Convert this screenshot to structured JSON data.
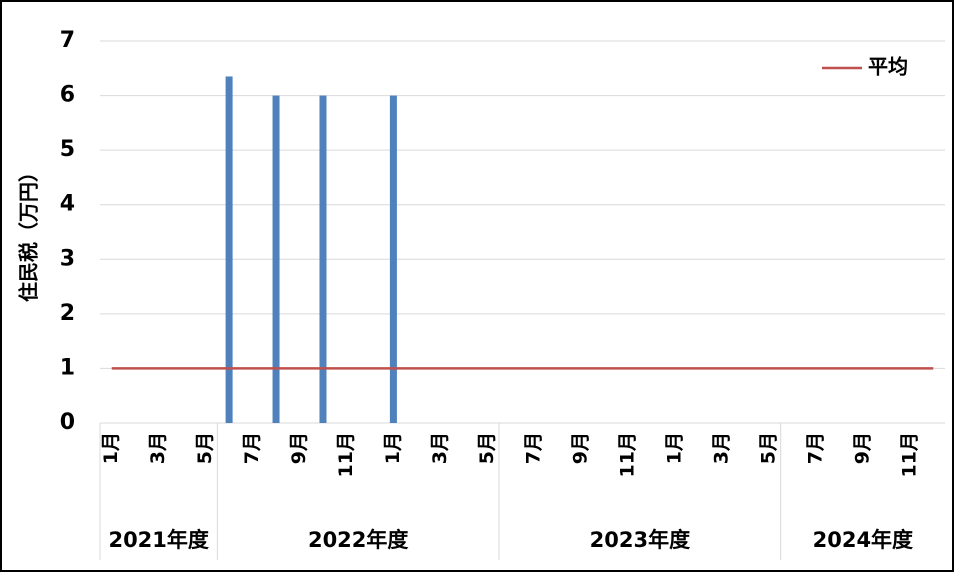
{
  "chart_data": {
    "type": "bar",
    "y_label": "住民税（万円）",
    "categories": [
      "1月",
      null,
      "3月",
      null,
      "5月",
      null,
      "7月",
      null,
      "9月",
      null,
      "11月",
      null,
      "1月",
      null,
      "3月",
      null,
      "5月",
      null,
      "7月",
      null,
      "9月",
      null,
      "11月",
      null,
      "1月",
      null,
      "3月",
      null,
      "5月",
      null,
      "7月",
      null,
      "9月",
      null,
      "11月",
      null
    ],
    "category_groups": [
      "2021年度",
      null,
      null,
      null,
      null,
      "2022年度",
      null,
      null,
      null,
      null,
      null,
      null,
      null,
      null,
      null,
      null,
      null,
      "2023年度",
      null,
      null,
      null,
      null,
      null,
      null,
      null,
      null,
      null,
      null,
      null,
      "2024年度",
      null,
      null,
      null,
      null,
      null,
      null
    ],
    "series": [
      {
        "type": "bar",
        "color": "#4f81bd",
        "values": [
          0,
          0,
          0,
          0,
          0,
          6.35,
          0,
          6,
          0,
          6,
          0,
          0,
          6,
          0,
          0,
          0,
          0,
          0,
          0,
          0,
          0,
          0,
          0,
          0,
          0,
          0,
          0,
          0,
          0,
          0,
          0,
          0,
          0,
          0,
          0,
          0
        ]
      },
      {
        "type": "line",
        "name": "平均",
        "color": "#c0504d",
        "values": [
          1,
          1,
          1,
          1,
          1,
          1,
          1,
          1,
          1,
          1,
          1,
          1,
          1,
          1,
          1,
          1,
          1,
          1,
          1,
          1,
          1,
          1,
          1,
          1,
          1,
          1,
          1,
          1,
          1,
          1,
          1,
          1,
          1,
          1,
          1,
          1
        ]
      }
    ],
    "ylim": [
      0,
      7
    ],
    "yticks": [
      0,
      1,
      2,
      3,
      4,
      5,
      6,
      7
    ],
    "grid": true,
    "legend": "top-right"
  }
}
